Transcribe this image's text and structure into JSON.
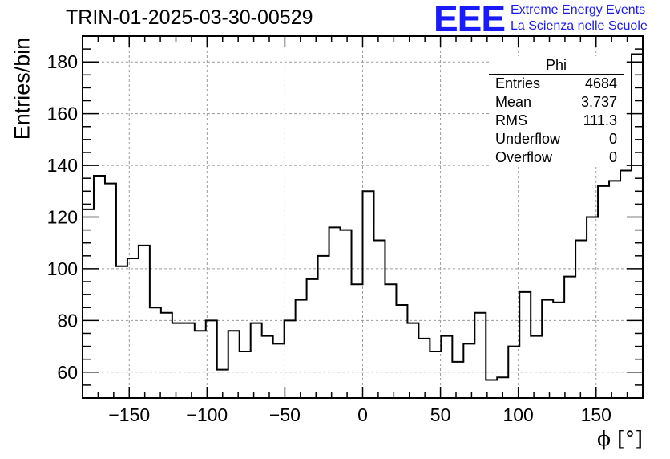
{
  "chart_data": {
    "type": "bar",
    "title": "TRIN-01-2025-03-30-00529",
    "xlabel": "ϕ [°]",
    "ylabel": "Entries/bin",
    "xlim": [
      -180,
      180
    ],
    "ylim": [
      50,
      190
    ],
    "grid": true,
    "bin_width": 7.2,
    "x_ticks": [
      -150,
      -100,
      -50,
      0,
      50,
      100,
      150
    ],
    "y_ticks": [
      60,
      80,
      100,
      120,
      140,
      160,
      180
    ],
    "x_tick_labels": [
      "−150",
      "−100",
      "−50",
      "0",
      "50",
      "100",
      "150"
    ],
    "y_tick_labels": [
      "60",
      "80",
      "100",
      "120",
      "140",
      "160",
      "180"
    ],
    "bin_edges_start": -180,
    "values": [
      123,
      136,
      133,
      101,
      104,
      109,
      85,
      83,
      79,
      79,
      76,
      80,
      61,
      76,
      68,
      79,
      74,
      71,
      80,
      88,
      96,
      105,
      116,
      115,
      94,
      130,
      111,
      94,
      86,
      79,
      73,
      68,
      74,
      64,
      71,
      83,
      57,
      58,
      70,
      91,
      74,
      88,
      87,
      97,
      111,
      120,
      132,
      134,
      138,
      183
    ]
  },
  "legend": {
    "title": "Phi",
    "rows": [
      {
        "key": "Entries",
        "value": "4684"
      },
      {
        "key": "Mean",
        "value": "3.737"
      },
      {
        "key": "RMS",
        "value": "111.3"
      },
      {
        "key": "Underflow",
        "value": "0"
      },
      {
        "key": "Overflow",
        "value": "0"
      }
    ]
  },
  "logo": {
    "mark": "EEE",
    "line1": "Extreme Energy Events",
    "line2": "La Scienza nelle Scuole",
    "color": "#1a1aff"
  }
}
